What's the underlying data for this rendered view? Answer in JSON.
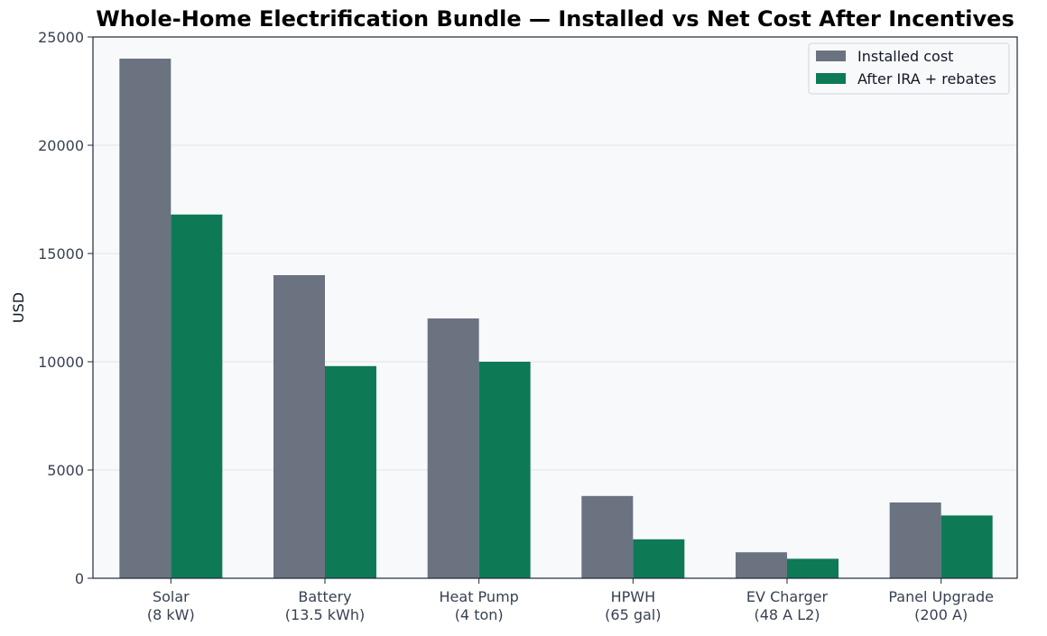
{
  "chart_data": {
    "type": "bar",
    "title": "Whole-Home Electrification Bundle — Installed vs Net Cost After Incentives",
    "ylabel": "USD",
    "xlabel": "",
    "ylim": [
      0,
      25000
    ],
    "yticks": [
      0,
      5000,
      10000,
      15000,
      20000,
      25000
    ],
    "categories": [
      [
        "Solar",
        "(8 kW)"
      ],
      [
        "Battery",
        "(13.5 kWh)"
      ],
      [
        "Heat Pump",
        "(4 ton)"
      ],
      [
        "HPWH",
        "(65 gal)"
      ],
      [
        "EV Charger",
        "(48 A L2)"
      ],
      [
        "Panel Upgrade",
        "(200 A)"
      ]
    ],
    "series": [
      {
        "name": "Installed cost",
        "color": "#6b7280",
        "values": [
          24000,
          14000,
          12000,
          3800,
          1200,
          3500
        ]
      },
      {
        "name": "After IRA + rebates",
        "color": "#0d7a55",
        "values": [
          16800,
          9800,
          10000,
          1800,
          900,
          2900
        ]
      }
    ],
    "grid": true,
    "legend_position": "top-right",
    "plot_background": "#f8f9fb"
  }
}
